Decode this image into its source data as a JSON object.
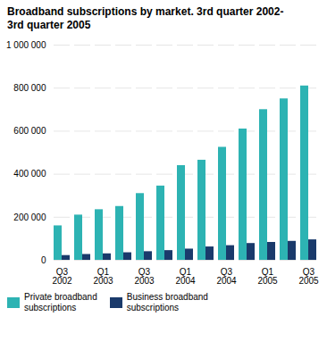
{
  "chart_data": {
    "type": "bar",
    "title": "Broadband subscriptions by market. 3rd quarter 2002-\n3rd quarter 2005",
    "categories": [
      "Q3\n2002",
      null,
      "Q1\n2003",
      null,
      "Q3\n2003",
      null,
      "Q1\n2004",
      null,
      "Q3\n2004",
      null,
      "Q1\n2005",
      null,
      "Q3\n2005"
    ],
    "series": [
      {
        "name": "Private broadband\nsubscriptions",
        "color": "#2DB3B3",
        "values": [
          160000,
          210000,
          235000,
          250000,
          310000,
          345000,
          440000,
          465000,
          525000,
          610000,
          700000,
          750000,
          810000
        ]
      },
      {
        "name": "Business broadband\nsubscriptions",
        "color": "#1A3A6B",
        "values": [
          22000,
          27000,
          30000,
          35000,
          40000,
          45000,
          52000,
          62000,
          68000,
          78000,
          83000,
          88000,
          95000
        ]
      }
    ],
    "ylim": [
      0,
      1000000
    ],
    "yticks": [
      0,
      {
        "value": 200000,
        "label": "200 000"
      },
      {
        "value": 400000,
        "label": "400 000"
      },
      {
        "value": 600000,
        "label": "600 000"
      },
      {
        "value": 800000,
        "label": "800 000"
      },
      {
        "value": 1000000,
        "label": "1 000 000"
      }
    ],
    "grid": true,
    "legend": "bottom"
  }
}
